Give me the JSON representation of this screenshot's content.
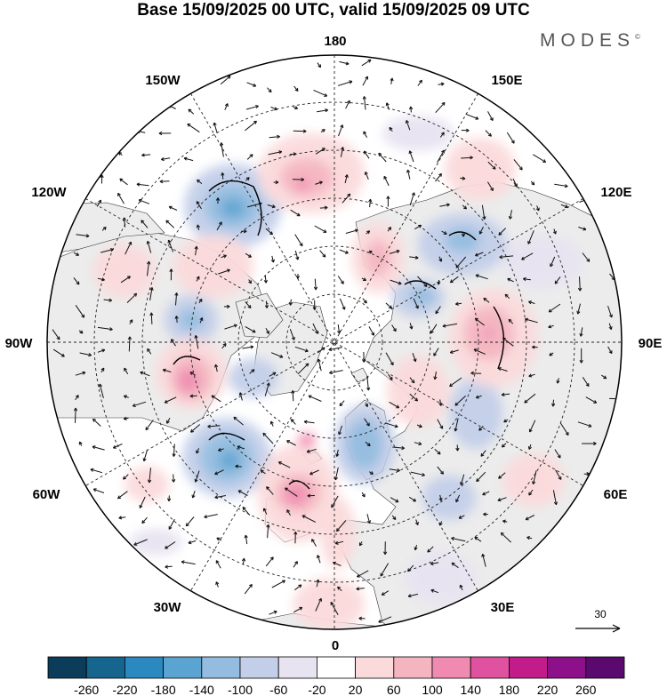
{
  "title": "Base 15/09/2025 00 UTC, valid 15/09/2025 09 UTC",
  "brand": "MODES",
  "brand_mark": "©",
  "meridian_labels": {
    "lon_180": "180",
    "lon_150w": "150W",
    "lon_150e": "150E",
    "lon_120w": "120W",
    "lon_120e": "120E",
    "lon_90w": "90W",
    "lon_90e": "90E",
    "lon_60w": "60W",
    "lon_60e": "60E",
    "lon_30w": "30W",
    "lon_30e": "30E",
    "lon_0": "0"
  },
  "reference_vector": {
    "label": "30",
    "icon": "arrow-right-icon"
  },
  "colorbar": {
    "colors": [
      "#0b3d5b",
      "#15658f",
      "#2b89bf",
      "#5ba3d0",
      "#93bce0",
      "#c3cfe9",
      "#e7e3f1",
      "#ffffff",
      "#fbdadb",
      "#f5b5c0",
      "#f08ab0",
      "#e0529f",
      "#c21c8a",
      "#8e0f8a",
      "#5a0a6e"
    ],
    "labels": [
      "-260",
      "-220",
      "-180",
      "-140",
      "-100",
      "-60",
      "-20",
      "20",
      "60",
      "100",
      "140",
      "180",
      "220",
      "260"
    ]
  },
  "colors": {
    "land": "#ececec",
    "ocean": "#ffffff",
    "outline": "#000000"
  }
}
